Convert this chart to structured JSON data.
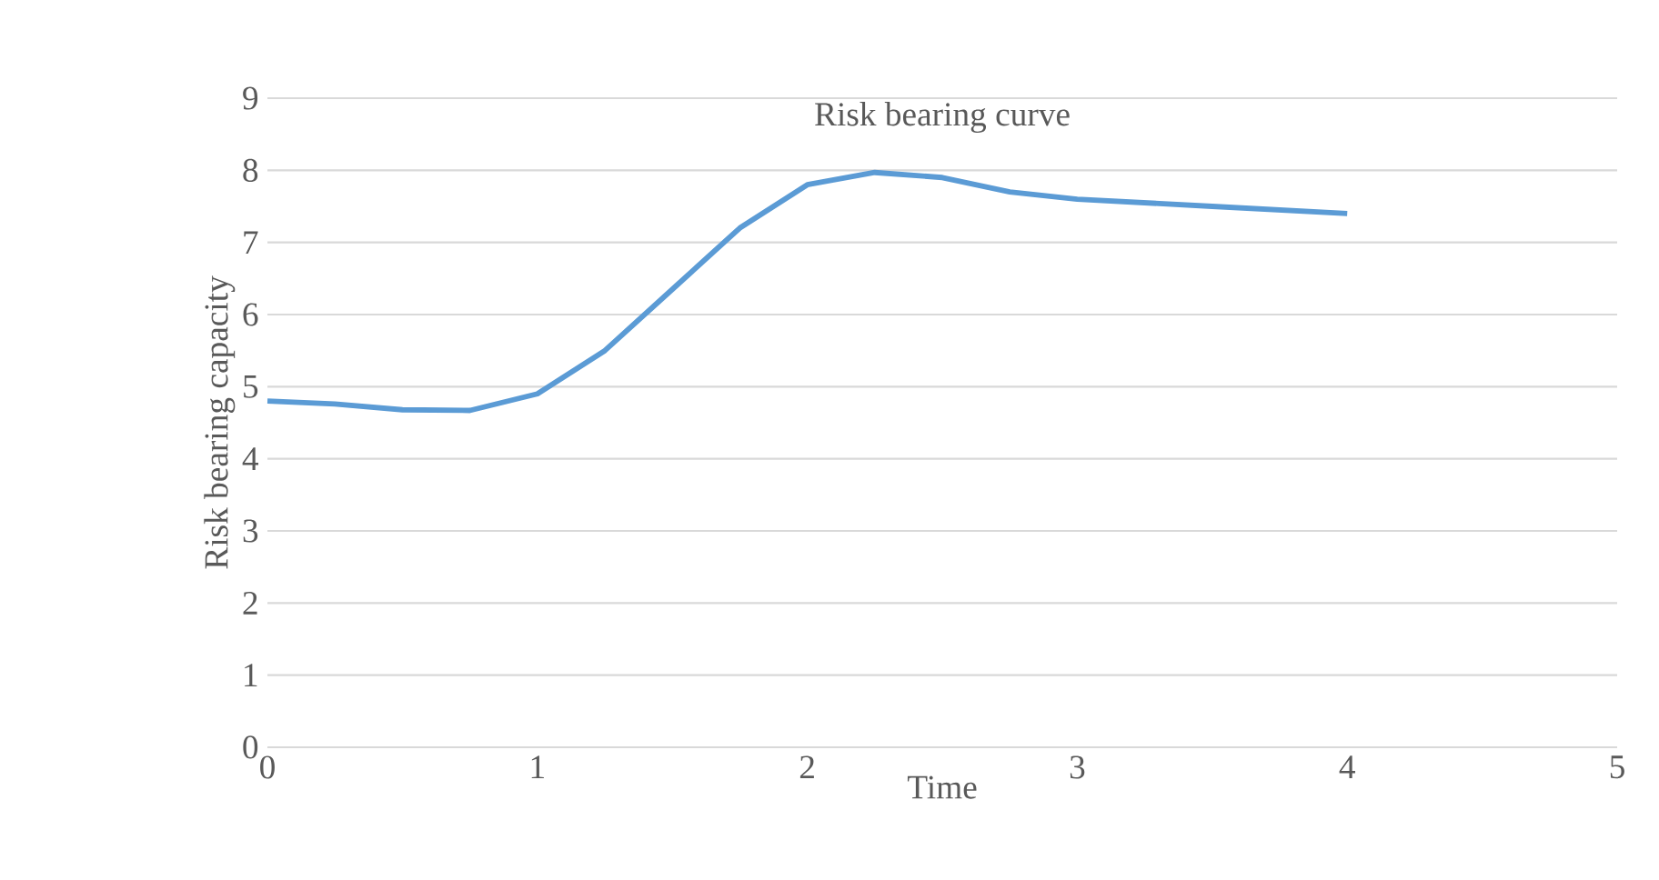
{
  "chart_data": {
    "type": "line",
    "title": "Risk bearing curve",
    "xlabel": "Time",
    "ylabel": "Risk bearing capacity",
    "x": [
      0,
      0.25,
      0.5,
      0.75,
      1,
      1.25,
      1.5,
      1.75,
      2,
      2.25,
      2.5,
      2.75,
      3,
      3.5,
      4
    ],
    "series": [
      {
        "color": "#5b9bd5",
        "values": [
          4.8,
          4.76,
          4.68,
          4.67,
          4.9,
          5.5,
          6.35,
          7.2,
          7.8,
          7.97,
          7.9,
          7.7,
          7.6,
          7.5,
          7.4
        ]
      }
    ],
    "xlim": [
      0,
      5
    ],
    "ylim": [
      0,
      9
    ],
    "xticks": [
      0,
      1,
      2,
      3,
      4,
      5
    ],
    "yticks": [
      0,
      1,
      2,
      3,
      4,
      5,
      6,
      7,
      8,
      9
    ],
    "grid": "y",
    "marker": "none"
  }
}
